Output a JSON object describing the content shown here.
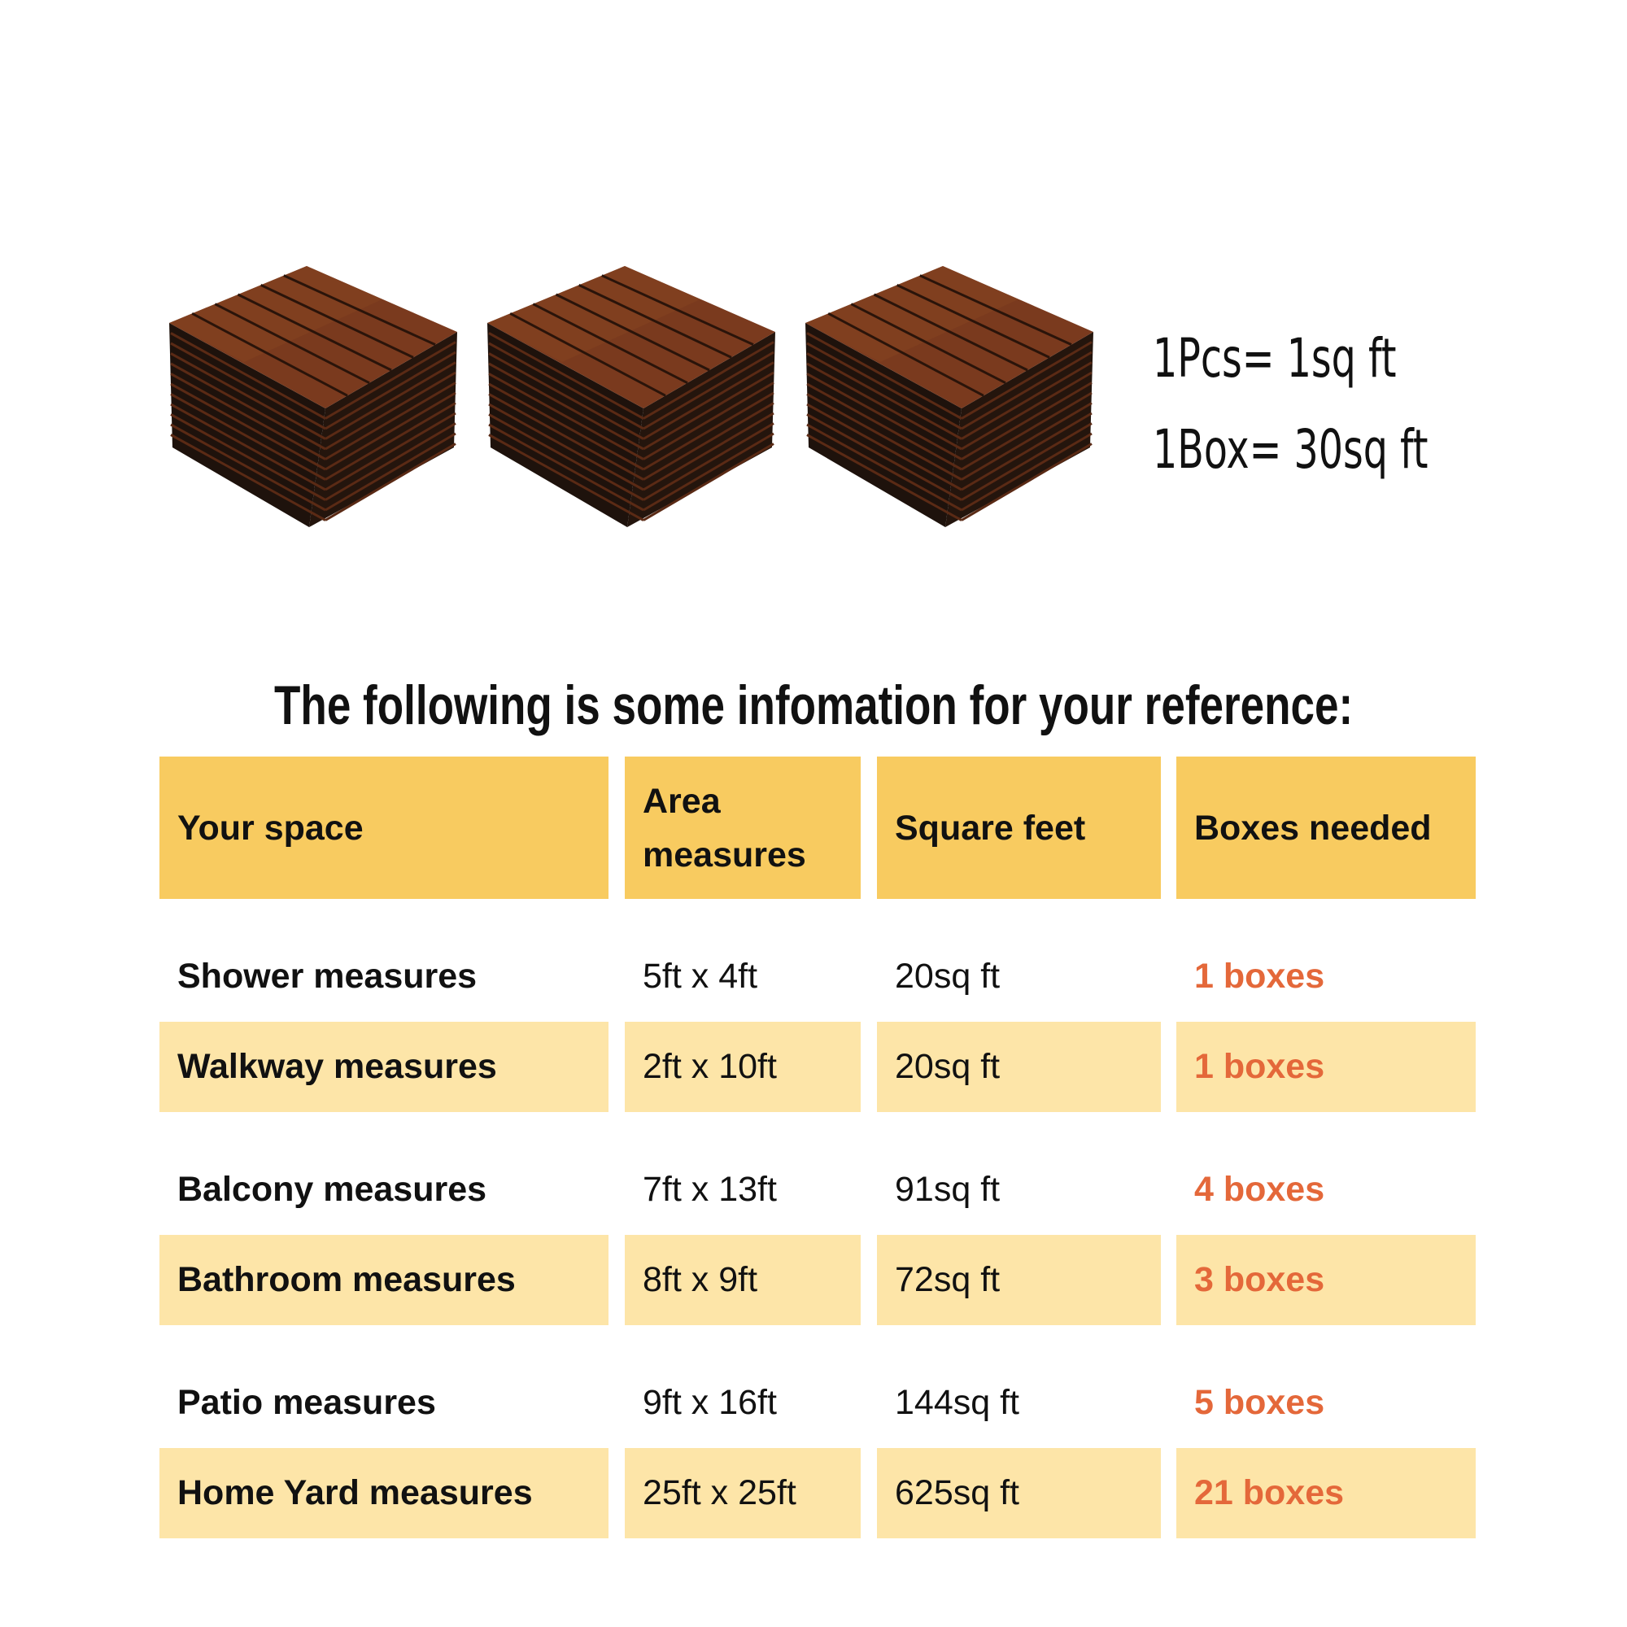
{
  "product": {
    "tiles": [
      "wood-deck-tile-stack",
      "wood-deck-tile-stack",
      "wood-deck-tile-stack"
    ],
    "specs": [
      "1Pcs= 1sq ft",
      "1Box= 30sq ft"
    ]
  },
  "title": "The following is some infomation for your reference:",
  "table": {
    "headers": [
      "Your space",
      "Area measures",
      "Square feet",
      "Boxes needed"
    ],
    "rows": [
      [
        "Shower measures",
        "5ft x 4ft",
        "20sq ft",
        "1 boxes"
      ],
      [
        "Walkway measures",
        "2ft x 10ft",
        "20sq ft",
        "1 boxes"
      ],
      [
        "Balcony measures",
        "7ft x 13ft",
        "91sq ft",
        "4 boxes"
      ],
      [
        "Bathroom measures",
        "8ft x 9ft",
        "72sq ft",
        "3 boxes"
      ],
      [
        "Patio measures",
        "9ft x 16ft",
        "144sq ft",
        "5 boxes"
      ],
      [
        "Home Yard measures",
        "25ft x 25ft",
        "625sq ft",
        "21 boxes"
      ]
    ]
  },
  "colors": {
    "header": "#F8CB60",
    "stripe": "#FDE5A8",
    "highlight": "#E4683A",
    "wood": "#7a3a1e"
  }
}
